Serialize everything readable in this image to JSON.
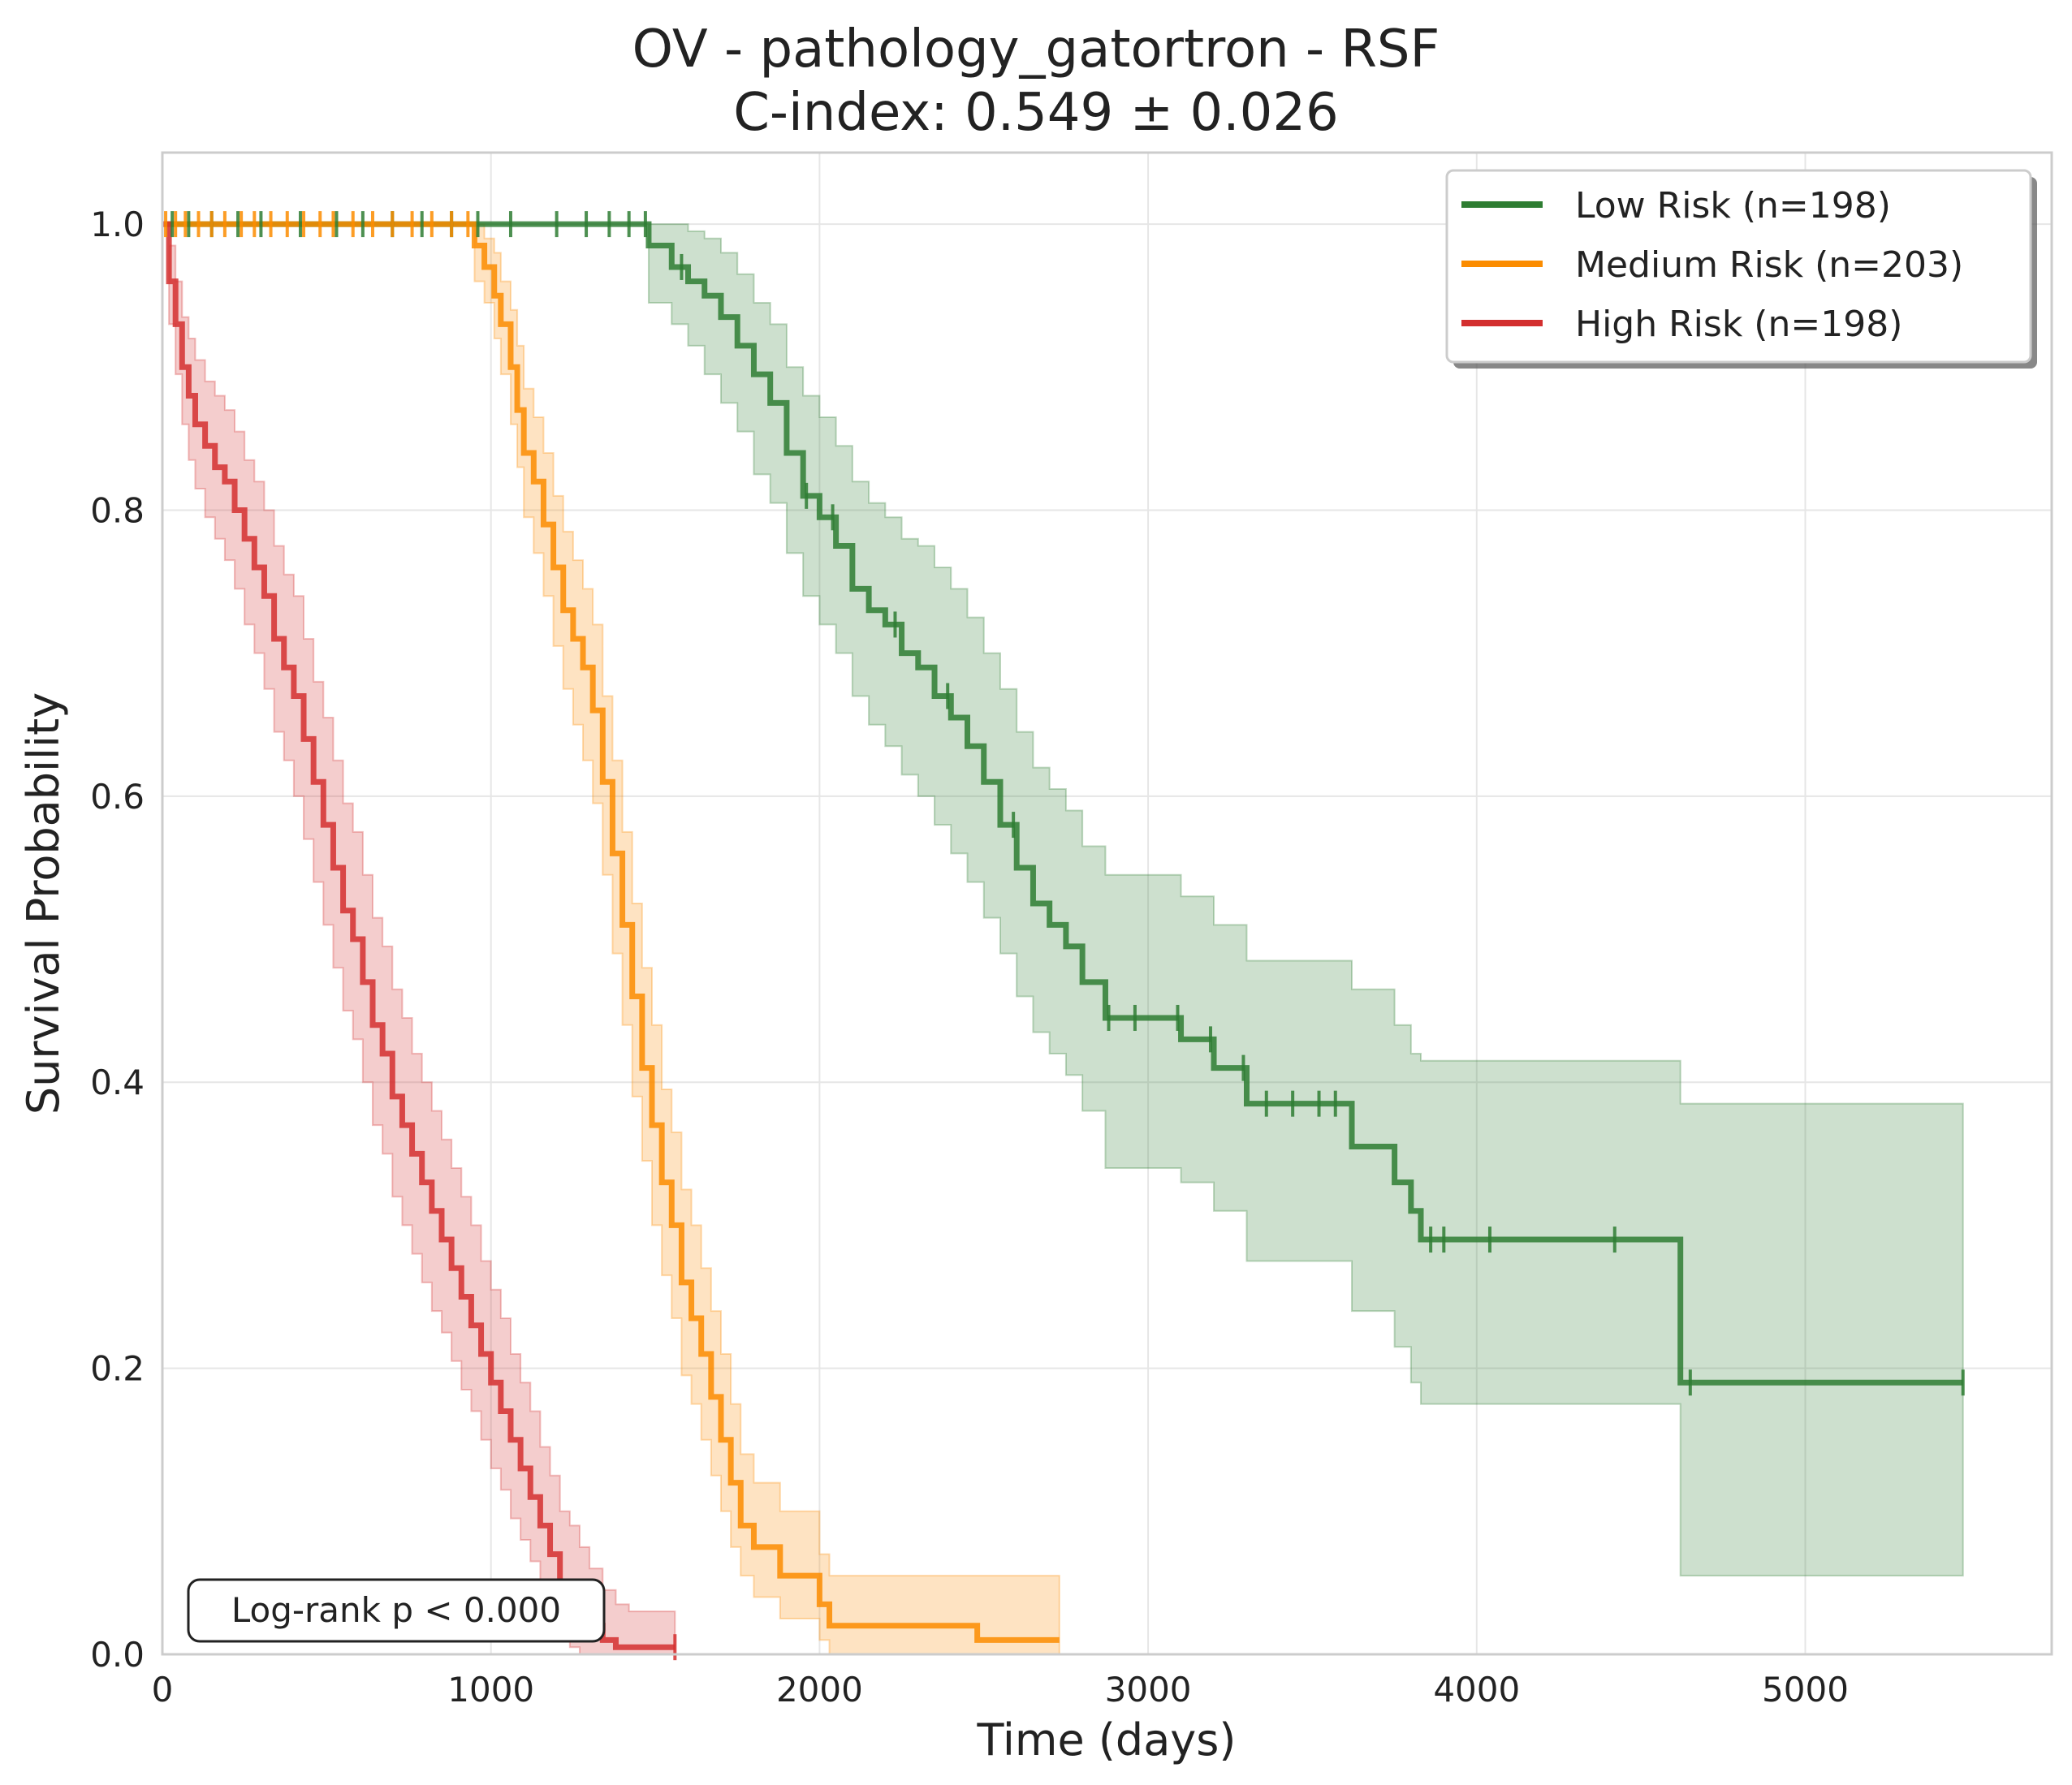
{
  "chart_data": {
    "type": "line",
    "title": "OV - pathology_gatortron - RSF",
    "subtitle": "C-index: 0.549 ± 0.026",
    "xlabel": "Time (days)",
    "ylabel": "Survival Probability",
    "xlim": [
      0,
      5750
    ],
    "ylim": [
      0,
      1.05
    ],
    "xticks": [
      0,
      1000,
      2000,
      3000,
      4000,
      5000
    ],
    "yticks": [
      0.0,
      0.2,
      0.4,
      0.6,
      0.8,
      1.0
    ],
    "xtick_labels": [
      "0",
      "1000",
      "2000",
      "3000",
      "4000",
      "5000"
    ],
    "ytick_labels": [
      "0.0",
      "0.2",
      "0.4",
      "0.6",
      "0.8",
      "1.0"
    ],
    "grid": true,
    "legend_position": "top-right",
    "annotation": "Log-rank p < 0.000",
    "series": [
      {
        "name": "Low Risk (n=198)",
        "color": "#2e7d32",
        "x": [
          0,
          1480,
          1550,
          1600,
          1650,
          1700,
          1750,
          1800,
          1850,
          1900,
          1950,
          2000,
          2050,
          2100,
          2150,
          2200,
          2250,
          2300,
          2350,
          2400,
          2450,
          2500,
          2550,
          2600,
          2650,
          2700,
          2750,
          2800,
          2870,
          3100,
          3200,
          3300,
          3400,
          3620,
          3750,
          3800,
          3830,
          4620,
          5480
        ],
        "y": [
          1.0,
          0.985,
          0.97,
          0.96,
          0.95,
          0.935,
          0.915,
          0.895,
          0.875,
          0.84,
          0.81,
          0.795,
          0.775,
          0.745,
          0.73,
          0.72,
          0.7,
          0.69,
          0.67,
          0.655,
          0.635,
          0.61,
          0.58,
          0.55,
          0.525,
          0.51,
          0.495,
          0.47,
          0.445,
          0.43,
          0.41,
          0.385,
          0.385,
          0.355,
          0.33,
          0.31,
          0.29,
          0.19,
          0.19
        ],
        "ci_lower": [
          1.0,
          0.945,
          0.93,
          0.915,
          0.895,
          0.875,
          0.855,
          0.825,
          0.805,
          0.77,
          0.74,
          0.72,
          0.7,
          0.67,
          0.65,
          0.635,
          0.615,
          0.6,
          0.58,
          0.56,
          0.54,
          0.515,
          0.49,
          0.46,
          0.435,
          0.42,
          0.405,
          0.38,
          0.34,
          0.33,
          0.31,
          0.275,
          0.275,
          0.24,
          0.215,
          0.19,
          0.175,
          0.055,
          0.055
        ],
        "ci_upper": [
          1.0,
          1.0,
          1.0,
          0.995,
          0.99,
          0.98,
          0.965,
          0.945,
          0.93,
          0.9,
          0.88,
          0.865,
          0.845,
          0.82,
          0.805,
          0.795,
          0.78,
          0.775,
          0.76,
          0.745,
          0.725,
          0.7,
          0.675,
          0.645,
          0.62,
          0.605,
          0.59,
          0.565,
          0.545,
          0.53,
          0.51,
          0.485,
          0.485,
          0.465,
          0.44,
          0.42,
          0.415,
          0.385,
          0.385
        ],
        "censor_x": [
          30,
          80,
          150,
          230,
          300,
          420,
          530,
          610,
          700,
          790,
          880,
          960,
          1060,
          1200,
          1290,
          1360,
          1420,
          1470,
          1580,
          1960,
          2040,
          2230,
          2390,
          2590,
          2880,
          2960,
          3090,
          3190,
          3290,
          3360,
          3440,
          3520,
          3570,
          3860,
          3900,
          4040,
          4420,
          4650,
          5480
        ]
      },
      {
        "name": "Medium Risk (n=203)",
        "color": "#fb8c00",
        "x": [
          0,
          950,
          980,
          1010,
          1030,
          1060,
          1080,
          1100,
          1130,
          1160,
          1190,
          1220,
          1250,
          1280,
          1310,
          1340,
          1370,
          1400,
          1430,
          1460,
          1490,
          1520,
          1550,
          1580,
          1610,
          1640,
          1670,
          1700,
          1730,
          1760,
          1800,
          1880,
          2000,
          2030,
          2480,
          2730
        ],
        "y": [
          1.0,
          0.985,
          0.97,
          0.95,
          0.93,
          0.9,
          0.87,
          0.84,
          0.82,
          0.79,
          0.76,
          0.73,
          0.71,
          0.69,
          0.66,
          0.61,
          0.56,
          0.51,
          0.46,
          0.41,
          0.37,
          0.33,
          0.3,
          0.26,
          0.235,
          0.21,
          0.18,
          0.15,
          0.12,
          0.09,
          0.075,
          0.055,
          0.035,
          0.02,
          0.01,
          0.01
        ],
        "ci_lower": [
          1.0,
          0.96,
          0.945,
          0.92,
          0.895,
          0.86,
          0.83,
          0.795,
          0.77,
          0.74,
          0.705,
          0.675,
          0.65,
          0.625,
          0.595,
          0.545,
          0.49,
          0.44,
          0.39,
          0.345,
          0.3,
          0.265,
          0.235,
          0.195,
          0.175,
          0.15,
          0.125,
          0.1,
          0.075,
          0.055,
          0.04,
          0.025,
          0.01,
          0.0,
          0.0,
          0.0
        ],
        "ci_upper": [
          1.0,
          1.0,
          0.99,
          0.98,
          0.96,
          0.94,
          0.915,
          0.885,
          0.865,
          0.84,
          0.81,
          0.785,
          0.765,
          0.745,
          0.72,
          0.67,
          0.625,
          0.575,
          0.525,
          0.48,
          0.44,
          0.395,
          0.365,
          0.325,
          0.3,
          0.27,
          0.24,
          0.21,
          0.175,
          0.14,
          0.12,
          0.1,
          0.07,
          0.055,
          0.055,
          0.055
        ],
        "censor_x": [
          10,
          40,
          70,
          110,
          150,
          190,
          240,
          280,
          330,
          380,
          430,
          480,
          520,
          580,
          640,
          700,
          760,
          820,
          880,
          930
        ]
      },
      {
        "name": "High Risk (n=198)",
        "color": "#d32f2f",
        "x": [
          0,
          20,
          40,
          60,
          80,
          100,
          130,
          160,
          190,
          220,
          250,
          280,
          310,
          340,
          370,
          400,
          430,
          460,
          490,
          520,
          550,
          580,
          610,
          640,
          670,
          700,
          730,
          760,
          790,
          820,
          850,
          880,
          910,
          940,
          970,
          1000,
          1030,
          1060,
          1090,
          1120,
          1150,
          1180,
          1210,
          1240,
          1270,
          1300,
          1340,
          1380,
          1420,
          1460,
          1500,
          1560
        ],
        "y": [
          1.0,
          0.96,
          0.93,
          0.9,
          0.88,
          0.86,
          0.845,
          0.83,
          0.82,
          0.8,
          0.78,
          0.76,
          0.74,
          0.71,
          0.69,
          0.67,
          0.64,
          0.61,
          0.58,
          0.55,
          0.52,
          0.5,
          0.47,
          0.44,
          0.42,
          0.39,
          0.37,
          0.35,
          0.33,
          0.31,
          0.29,
          0.27,
          0.25,
          0.23,
          0.21,
          0.19,
          0.17,
          0.15,
          0.13,
          0.11,
          0.09,
          0.07,
          0.05,
          0.04,
          0.03,
          0.02,
          0.01,
          0.005,
          0.005,
          0.005,
          0.005,
          0.005
        ],
        "ci_lower": [
          1.0,
          0.93,
          0.895,
          0.86,
          0.835,
          0.815,
          0.795,
          0.78,
          0.765,
          0.745,
          0.72,
          0.7,
          0.675,
          0.645,
          0.625,
          0.6,
          0.57,
          0.54,
          0.51,
          0.48,
          0.45,
          0.43,
          0.4,
          0.37,
          0.35,
          0.32,
          0.3,
          0.28,
          0.26,
          0.24,
          0.225,
          0.205,
          0.185,
          0.17,
          0.15,
          0.13,
          0.115,
          0.095,
          0.08,
          0.065,
          0.045,
          0.03,
          0.015,
          0.005,
          0.0,
          0.0,
          0.0,
          0.0,
          0.0,
          0.0,
          0.0,
          0.0
        ],
        "ci_upper": [
          1.0,
          0.985,
          0.96,
          0.935,
          0.92,
          0.905,
          0.89,
          0.88,
          0.87,
          0.855,
          0.835,
          0.82,
          0.8,
          0.775,
          0.755,
          0.74,
          0.71,
          0.68,
          0.655,
          0.625,
          0.595,
          0.575,
          0.545,
          0.515,
          0.495,
          0.465,
          0.445,
          0.42,
          0.4,
          0.38,
          0.36,
          0.34,
          0.32,
          0.3,
          0.275,
          0.255,
          0.235,
          0.21,
          0.19,
          0.17,
          0.145,
          0.125,
          0.1,
          0.09,
          0.075,
          0.06,
          0.045,
          0.035,
          0.03,
          0.03,
          0.03,
          0.03
        ],
        "censor_x": [
          1330,
          1560
        ]
      }
    ]
  }
}
